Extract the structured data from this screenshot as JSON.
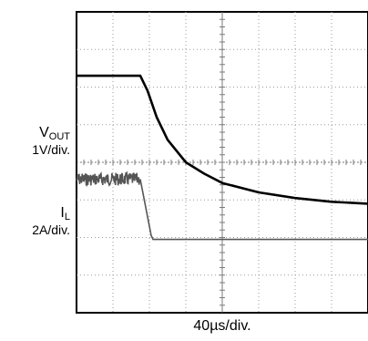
{
  "chart_data": {
    "type": "line",
    "title": "",
    "xlabel": "40µs/div.",
    "ylabel": "",
    "grid": true,
    "x_range_div": [
      0,
      8
    ],
    "y_range_div": [
      0,
      8
    ],
    "channels": [
      {
        "name_main": "V",
        "name_sub": "OUT",
        "scale": "1V/div.",
        "trace": "thick-black",
        "x": [
          0,
          1.75,
          1.95,
          2.2,
          2.5,
          3.0,
          3.5,
          4.0,
          5.0,
          6.0,
          7.0,
          8.0
        ],
        "y": [
          6.3,
          6.3,
          5.9,
          5.2,
          4.6,
          4.0,
          3.7,
          3.45,
          3.2,
          3.05,
          2.95,
          2.9
        ]
      },
      {
        "name_main": "I",
        "name_sub": "L",
        "scale": "2A/div.",
        "trace": "noisy-gray",
        "x": [
          0,
          1.75,
          2.05,
          2.1,
          8.0
        ],
        "y": [
          3.55,
          3.55,
          2.05,
          1.95,
          1.95
        ]
      }
    ]
  },
  "labels": {
    "vout_main": "V",
    "vout_sub": "OUT",
    "vout_scale": "1V/div.",
    "il_main": "I",
    "il_sub": "L",
    "il_scale": "2A/div.",
    "time_base": "40µs/div."
  }
}
